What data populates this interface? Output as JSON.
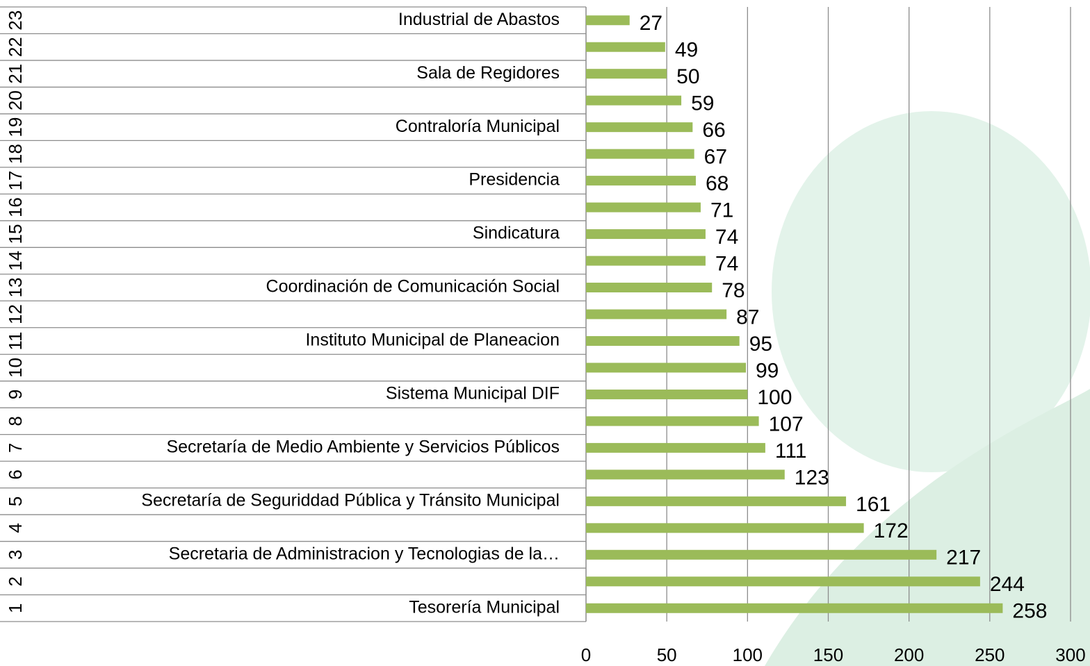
{
  "chart_data": {
    "type": "bar",
    "orientation": "horizontal",
    "categories": [
      "1",
      "2",
      "3",
      "4",
      "5",
      "6",
      "7",
      "8",
      "9",
      "10",
      "11",
      "12",
      "13",
      "14",
      "15",
      "16",
      "17",
      "18",
      "19",
      "20",
      "21",
      "22",
      "23"
    ],
    "category_groups": [
      "Tesorería Municipal",
      null,
      "Secretaria de Administracion y Tecnologias de la…",
      null,
      "Secretaría de Seguriddad Pública y Tránsito Municipal",
      null,
      "Secretaría de Medio Ambiente y Servicios Públicos",
      null,
      "Sistema Municipal DIF",
      null,
      "Instituto Municipal de Planeacion",
      null,
      "Coordinación de Comunicación Social",
      null,
      "Sindicatura",
      null,
      "Presidencia",
      null,
      "Contraloría Municipal",
      null,
      "Sala de Regidores",
      null,
      "Industrial de Abastos"
    ],
    "values": [
      258,
      244,
      217,
      172,
      161,
      123,
      111,
      107,
      100,
      99,
      95,
      87,
      78,
      74,
      74,
      71,
      68,
      67,
      66,
      59,
      50,
      49,
      27
    ],
    "color": "#9bbb59",
    "xlim": [
      0,
      300
    ],
    "xticks": [
      0,
      50,
      100,
      150,
      200,
      250,
      300
    ],
    "grid": true
  }
}
